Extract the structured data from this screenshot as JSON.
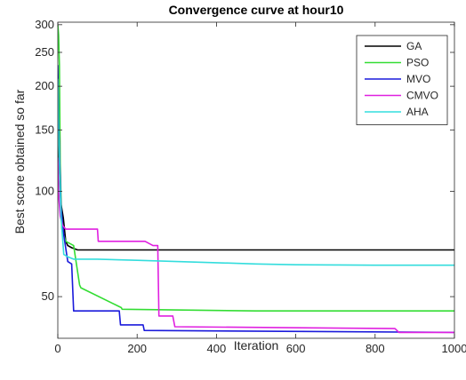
{
  "chart_data": {
    "type": "line",
    "title": "Convergence curve at hour10",
    "xlabel": "Iteration",
    "ylabel": "Best score obtained so far",
    "xlim": [
      0,
      1000
    ],
    "ylim": [
      38,
      305
    ],
    "y_scale": "log",
    "xticks": [
      0,
      200,
      400,
      600,
      800,
      1000
    ],
    "yticks": [
      50,
      100,
      150,
      200,
      250,
      300
    ],
    "grid": false,
    "legend_position": "top-right",
    "series": [
      {
        "name": "GA",
        "color": "#000000",
        "x": [
          0,
          3,
          8,
          14,
          20,
          25,
          35,
          50,
          80,
          1000
        ],
        "y": [
          185,
          120,
          92,
          84,
          72,
          70,
          69,
          68,
          68,
          68
        ]
      },
      {
        "name": "PSO",
        "color": "#33dd33",
        "x": [
          0,
          2,
          4,
          6,
          10,
          20,
          40,
          55,
          58,
          160,
          162,
          500,
          1000
        ],
        "y": [
          300,
          280,
          230,
          120,
          78,
          72,
          70,
          54,
          53,
          46.5,
          46,
          45.5,
          45.5
        ]
      },
      {
        "name": "MVO",
        "color": "#1a1adb",
        "x": [
          0,
          2,
          5,
          8,
          15,
          25,
          35,
          40,
          155,
          158,
          215,
          218,
          1000
        ],
        "y": [
          230,
          160,
          120,
          90,
          75,
          63,
          62,
          45.5,
          45.5,
          41.5,
          41.5,
          40,
          39.5
        ]
      },
      {
        "name": "CMVO",
        "color": "#e020e0",
        "x": [
          0,
          3,
          6,
          12,
          20,
          100,
          102,
          220,
          240,
          252,
          255,
          290,
          295,
          850,
          860,
          1000
        ],
        "y": [
          125,
          95,
          85,
          80,
          78,
          78,
          72,
          72,
          70,
          70,
          44,
          44,
          41,
          40.5,
          39.5,
          39.5
        ]
      },
      {
        "name": "AHA",
        "color": "#33dddd",
        "x": [
          0,
          2,
          5,
          8,
          15,
          25,
          40,
          100,
          200,
          300,
          400,
          500,
          600,
          700,
          800,
          900,
          1000
        ],
        "y": [
          210,
          150,
          110,
          85,
          66,
          65,
          64,
          64,
          63.5,
          63,
          62.5,
          62,
          61.7,
          61.6,
          61.5,
          61.5,
          61.5
        ]
      }
    ]
  }
}
